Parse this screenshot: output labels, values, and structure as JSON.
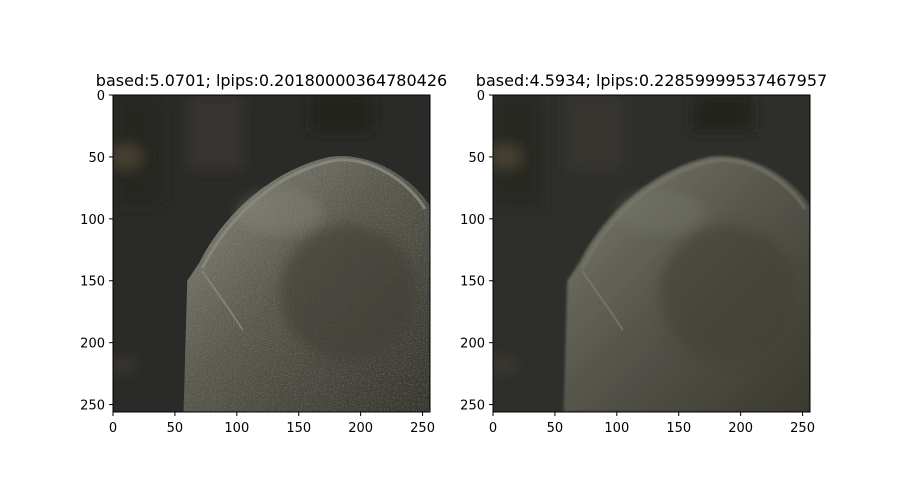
{
  "chart_data": [
    {
      "type": "image",
      "title": "based:5.0701; lpips:0.20180000364780426",
      "xlim": [
        0,
        256
      ],
      "ylim": [
        256,
        0
      ],
      "xticks": [
        0,
        50,
        100,
        150,
        200,
        250
      ],
      "yticks": [
        0,
        50,
        100,
        150,
        200,
        250
      ],
      "content": "grainy, higher-contrast crop of a weathered rounded stone (headstone) against a dark background",
      "colors": {
        "background": "#2a2a28",
        "stone_light": "#8a8a80",
        "stone_dark": "#3e3d35"
      }
    },
    {
      "type": "image",
      "title": "based:4.5934; lpips:0.22859999537467957",
      "xlim": [
        0,
        256
      ],
      "ylim": [
        256,
        0
      ],
      "xticks": [
        0,
        50,
        100,
        150,
        200,
        250
      ],
      "yticks": [
        0,
        50,
        100,
        150,
        200,
        250
      ],
      "content": "smoother, lower-contrast crop of the same weathered rounded stone against a dark background",
      "colors": {
        "background": "#2e2f2b",
        "stone_light": "#7a7b6e",
        "stone_dark": "#403f34"
      }
    }
  ]
}
